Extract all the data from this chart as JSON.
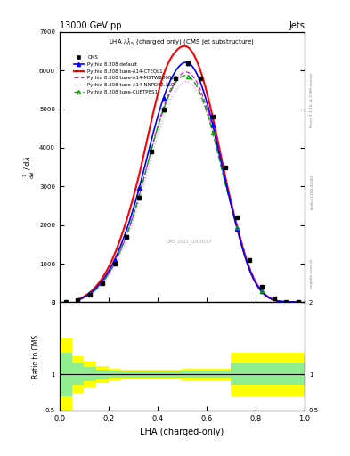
{
  "title": "13000 GeV pp",
  "title_right": "Jets",
  "xlabel": "LHA (charged-only)",
  "ylabel_ratio": "Ratio to CMS",
  "xlim": [
    0,
    1
  ],
  "ylim_main": [
    0,
    7000
  ],
  "ylim_ratio": [
    0.5,
    2.0
  ],
  "rivet_label": "Rivet 3.1.10, ≥ 2.9M events",
  "arxiv_label": "[arXiv:1306.3436]",
  "mcplots_label": "mcplots.cern.ch",
  "lha_x": [
    0.0,
    0.05,
    0.1,
    0.15,
    0.2,
    0.25,
    0.3,
    0.35,
    0.4,
    0.45,
    0.5,
    0.55,
    0.6,
    0.65,
    0.7,
    0.75,
    0.8,
    0.85,
    0.9,
    0.95,
    1.0
  ],
  "cms_data": [
    0,
    50,
    200,
    500,
    1000,
    1700,
    2700,
    3900,
    5000,
    5800,
    6200,
    5800,
    4800,
    3500,
    2200,
    1100,
    400,
    100,
    20,
    3,
    0
  ],
  "pythia_default": [
    0,
    60,
    230,
    560,
    1100,
    1900,
    2950,
    4200,
    5300,
    6000,
    6200,
    5700,
    4600,
    3200,
    1900,
    850,
    280,
    60,
    10,
    1,
    0
  ],
  "pythia_cteql1": [
    0,
    70,
    260,
    630,
    1250,
    2150,
    3300,
    4700,
    5900,
    6500,
    6600,
    6000,
    4800,
    3300,
    1950,
    870,
    280,
    60,
    10,
    1,
    0
  ],
  "pythia_mstw": [
    0,
    55,
    210,
    510,
    1010,
    1750,
    2750,
    3950,
    5050,
    5750,
    5950,
    5500,
    4500,
    3200,
    2000,
    920,
    310,
    70,
    12,
    2,
    0
  ],
  "pythia_nnpdf": [
    0,
    50,
    200,
    480,
    950,
    1650,
    2600,
    3750,
    4800,
    5500,
    5700,
    5300,
    4400,
    3150,
    1980,
    920,
    310,
    70,
    12,
    2,
    0
  ],
  "pythia_cuetp8s1": [
    0,
    55,
    210,
    510,
    1020,
    1760,
    2760,
    3950,
    5000,
    5700,
    5850,
    5400,
    4400,
    3100,
    1950,
    900,
    300,
    68,
    12,
    2,
    0
  ],
  "ratio_x_edges": [
    0.0,
    0.05,
    0.1,
    0.15,
    0.2,
    0.25,
    0.3,
    0.35,
    0.4,
    0.45,
    0.5,
    0.55,
    0.6,
    0.65,
    0.7,
    0.75,
    0.8,
    0.85,
    0.9,
    0.95,
    1.0
  ],
  "ratio_green_upper": [
    1.3,
    1.15,
    1.1,
    1.07,
    1.05,
    1.04,
    1.04,
    1.04,
    1.04,
    1.04,
    1.05,
    1.05,
    1.05,
    1.05,
    1.15,
    1.15,
    1.15,
    1.15,
    1.15,
    1.15
  ],
  "ratio_green_lower": [
    0.7,
    0.85,
    0.9,
    0.93,
    0.95,
    0.96,
    0.96,
    0.96,
    0.96,
    0.96,
    0.95,
    0.95,
    0.95,
    0.95,
    0.85,
    0.85,
    0.85,
    0.85,
    0.85,
    0.85
  ],
  "ratio_yellow_upper": [
    1.5,
    1.25,
    1.18,
    1.12,
    1.08,
    1.07,
    1.06,
    1.06,
    1.06,
    1.06,
    1.08,
    1.08,
    1.08,
    1.08,
    1.3,
    1.3,
    1.3,
    1.3,
    1.3,
    1.3
  ],
  "ratio_yellow_lower": [
    0.5,
    0.75,
    0.82,
    0.88,
    0.92,
    0.93,
    0.94,
    0.94,
    0.94,
    0.94,
    0.92,
    0.92,
    0.92,
    0.92,
    0.7,
    0.7,
    0.7,
    0.7,
    0.7,
    0.7
  ],
  "color_default": "#0000ff",
  "color_cteql1": "#ff0000",
  "color_mstw": "#ff00dd",
  "color_nnpdf": "#ff88ff",
  "color_cuetp8s1": "#00aa00",
  "color_cms": "#000000"
}
